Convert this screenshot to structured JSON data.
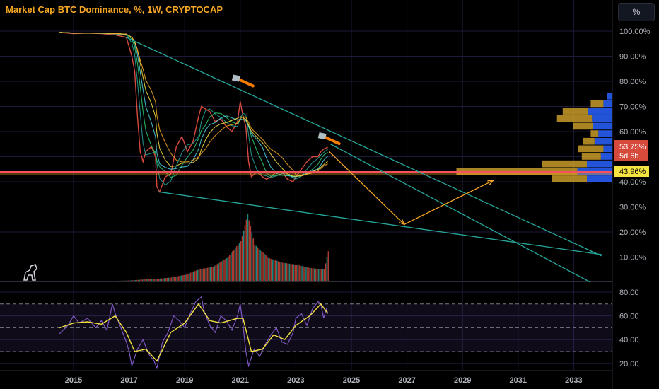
{
  "header": {
    "title": "Market Cap BTC Dominance, %, 1W, CRYPTOCAP",
    "unit_button": "%"
  },
  "price_tags": {
    "current": "53.75%",
    "countdown": "5d 6h",
    "hline": "43.96%"
  },
  "colors": {
    "price": "#d64a3c",
    "trendline": "#26a69a",
    "hline": "#f7525f",
    "hline_tag": "#f5e342",
    "forecast": "#f5a623",
    "rsi": "#7e57c2",
    "rsi_signal": "#f5e342",
    "vp_up": "#2962ff",
    "vp_down": "#d4a52a"
  },
  "chart_data": [
    {
      "type": "line",
      "title": "Market Cap BTC Dominance, %, 1W, CRYPTOCAP",
      "yaxis_ticks": [
        "100.00%",
        "90.00%",
        "80.00%",
        "70.00%",
        "60.00%",
        "50.00%",
        "40.00%",
        "30.00%",
        "20.00%",
        "10.00%"
      ],
      "xaxis_ticks": [
        "2015",
        "2017",
        "2019",
        "2021",
        "2023",
        "2025",
        "2027",
        "2029",
        "2031",
        "2033"
      ],
      "ylim": [
        0,
        101
      ],
      "xlim": [
        2014.0,
        2034.0
      ],
      "grid": true,
      "series": [
        {
          "values": [
            [
              2014.5,
              99.5
            ],
            [
              2015.0,
              99.0
            ],
            [
              2015.5,
              99.2
            ],
            [
              2016.0,
              99.0
            ],
            [
              2016.5,
              98.5
            ],
            [
              2016.9,
              97.5
            ],
            [
              2017.1,
              90
            ],
            [
              2017.2,
              84
            ],
            [
              2017.3,
              66
            ],
            [
              2017.4,
              52
            ],
            [
              2017.5,
              48
            ],
            [
              2017.6,
              52
            ],
            [
              2017.8,
              54
            ],
            [
              2017.95,
              50
            ],
            [
              2018.0,
              38
            ],
            [
              2018.1,
              36
            ],
            [
              2018.3,
              42
            ],
            [
              2018.5,
              43
            ],
            [
              2018.7,
              54
            ],
            [
              2018.9,
              58
            ],
            [
              2019.1,
              52
            ],
            [
              2019.3,
              56
            ],
            [
              2019.5,
              66
            ],
            [
              2019.6,
              70
            ],
            [
              2019.75,
              69
            ],
            [
              2019.9,
              68
            ],
            [
              2020.1,
              64
            ],
            [
              2020.3,
              65
            ],
            [
              2020.5,
              62
            ],
            [
              2020.7,
              60
            ],
            [
              2020.9,
              64
            ],
            [
              2021.0,
              72
            ],
            [
              2021.1,
              66
            ],
            [
              2021.2,
              62
            ],
            [
              2021.3,
              48
            ],
            [
              2021.4,
              42
            ],
            [
              2021.6,
              44
            ],
            [
              2021.8,
              42
            ],
            [
              2021.95,
              41
            ],
            [
              2022.1,
              42
            ],
            [
              2022.3,
              44
            ],
            [
              2022.5,
              44
            ],
            [
              2022.7,
              41
            ],
            [
              2022.9,
              40
            ],
            [
              2023.0,
              42
            ],
            [
              2023.2,
              45
            ],
            [
              2023.4,
              48
            ],
            [
              2023.6,
              50
            ],
            [
              2023.8,
              50
            ],
            [
              2023.9,
              52
            ],
            [
              2024.0,
              53
            ],
            [
              2024.15,
              53.75
            ]
          ]
        }
      ],
      "annotations": {
        "horizontal_line_value": 43.96,
        "upper_trendline": [
          [
            2016.9,
            97.5
          ],
          [
            2034.0,
            10.5
          ]
        ],
        "lower_trendline": [
          [
            2018.05,
            36
          ],
          [
            2034.0,
            11
          ]
        ],
        "extra_trendline": [
          [
            2024.25,
            55
          ],
          [
            2033.6,
            0
          ]
        ],
        "forecast_path": [
          [
            2024.2,
            52
          ],
          [
            2026.9,
            23
          ],
          [
            2030.1,
            40.5
          ]
        ]
      }
    },
    {
      "type": "bar",
      "title": "Volume",
      "x": [
        2014.5,
        2015.0,
        2015.5,
        2016.0,
        2016.5,
        2017.0,
        2017.5,
        2018.0,
        2018.5,
        2019.0,
        2019.5,
        2020.0,
        2020.5,
        2021.0,
        2021.25,
        2021.5,
        2022.0,
        2022.5,
        2023.0,
        2023.5,
        2024.0,
        2024.15
      ],
      "values": [
        0.5,
        0.6,
        0.6,
        0.8,
        1.0,
        1.5,
        3,
        4,
        6,
        10,
        18,
        22,
        35,
        60,
        100,
        55,
        35,
        28,
        25,
        20,
        18,
        45
      ]
    },
    {
      "type": "line",
      "title": "RSI",
      "yaxis_ticks": [
        "80.00",
        "60.00",
        "40.00",
        "20.00"
      ],
      "ylim": [
        15,
        85
      ],
      "reference_lines": [
        70,
        50,
        30
      ],
      "series": [
        {
          "name": "RSI",
          "values": [
            [
              2014.5,
              45
            ],
            [
              2014.8,
              52
            ],
            [
              2015.0,
              60
            ],
            [
              2015.2,
              54
            ],
            [
              2015.5,
              58
            ],
            [
              2015.8,
              50
            ],
            [
              2016.0,
              56
            ],
            [
              2016.2,
              48
            ],
            [
              2016.4,
              70
            ],
            [
              2016.5,
              62
            ],
            [
              2016.7,
              50
            ],
            [
              2016.9,
              38
            ],
            [
              2017.0,
              30
            ],
            [
              2017.1,
              18
            ],
            [
              2017.3,
              32
            ],
            [
              2017.5,
              40
            ],
            [
              2017.7,
              28
            ],
            [
              2017.9,
              22
            ],
            [
              2018.0,
              16
            ],
            [
              2018.2,
              38
            ],
            [
              2018.4,
              46
            ],
            [
              2018.6,
              60
            ],
            [
              2018.8,
              56
            ],
            [
              2019.0,
              50
            ],
            [
              2019.2,
              62
            ],
            [
              2019.4,
              72
            ],
            [
              2019.6,
              76
            ],
            [
              2019.7,
              64
            ],
            [
              2019.9,
              52
            ],
            [
              2020.1,
              46
            ],
            [
              2020.3,
              60
            ],
            [
              2020.5,
              56
            ],
            [
              2020.7,
              48
            ],
            [
              2020.9,
              60
            ],
            [
              2021.0,
              70
            ],
            [
              2021.1,
              52
            ],
            [
              2021.2,
              30
            ],
            [
              2021.3,
              18
            ],
            [
              2021.5,
              32
            ],
            [
              2021.7,
              26
            ],
            [
              2021.9,
              36
            ],
            [
              2022.1,
              44
            ],
            [
              2022.3,
              50
            ],
            [
              2022.5,
              38
            ],
            [
              2022.7,
              36
            ],
            [
              2022.9,
              46
            ],
            [
              2023.0,
              58
            ],
            [
              2023.2,
              62
            ],
            [
              2023.4,
              52
            ],
            [
              2023.6,
              66
            ],
            [
              2023.8,
              72
            ],
            [
              2023.9,
              70
            ],
            [
              2024.0,
              58
            ],
            [
              2024.1,
              66
            ],
            [
              2024.15,
              62
            ]
          ]
        },
        {
          "name": "Signal",
          "values": [
            [
              2014.5,
              50
            ],
            [
              2015.0,
              54
            ],
            [
              2015.5,
              55
            ],
            [
              2016.0,
              53
            ],
            [
              2016.5,
              60
            ],
            [
              2016.9,
              46
            ],
            [
              2017.2,
              30
            ],
            [
              2017.6,
              32
            ],
            [
              2018.0,
              22
            ],
            [
              2018.5,
              46
            ],
            [
              2019.0,
              54
            ],
            [
              2019.5,
              70
            ],
            [
              2019.9,
              56
            ],
            [
              2020.3,
              54
            ],
            [
              2020.9,
              58
            ],
            [
              2021.1,
              58
            ],
            [
              2021.4,
              30
            ],
            [
              2021.8,
              32
            ],
            [
              2022.2,
              44
            ],
            [
              2022.6,
              40
            ],
            [
              2023.0,
              52
            ],
            [
              2023.5,
              60
            ],
            [
              2023.9,
              70
            ],
            [
              2024.15,
              62
            ]
          ]
        }
      ]
    },
    {
      "type": "bar",
      "title": "Volume Profile",
      "orientation": "horizontal",
      "categories": [
        "74",
        "71",
        "68",
        "65",
        "62",
        "59",
        "56",
        "53",
        "50",
        "47",
        "44",
        "41"
      ],
      "series": [
        {
          "name": "up",
          "values": [
            8,
            14,
            38,
            32,
            30,
            22,
            28,
            14,
            18,
            40,
            55,
            40
          ]
        },
        {
          "name": "down",
          "values": [
            0,
            20,
            40,
            55,
            32,
            12,
            18,
            40,
            30,
            70,
            190,
            55
          ]
        }
      ]
    }
  ]
}
